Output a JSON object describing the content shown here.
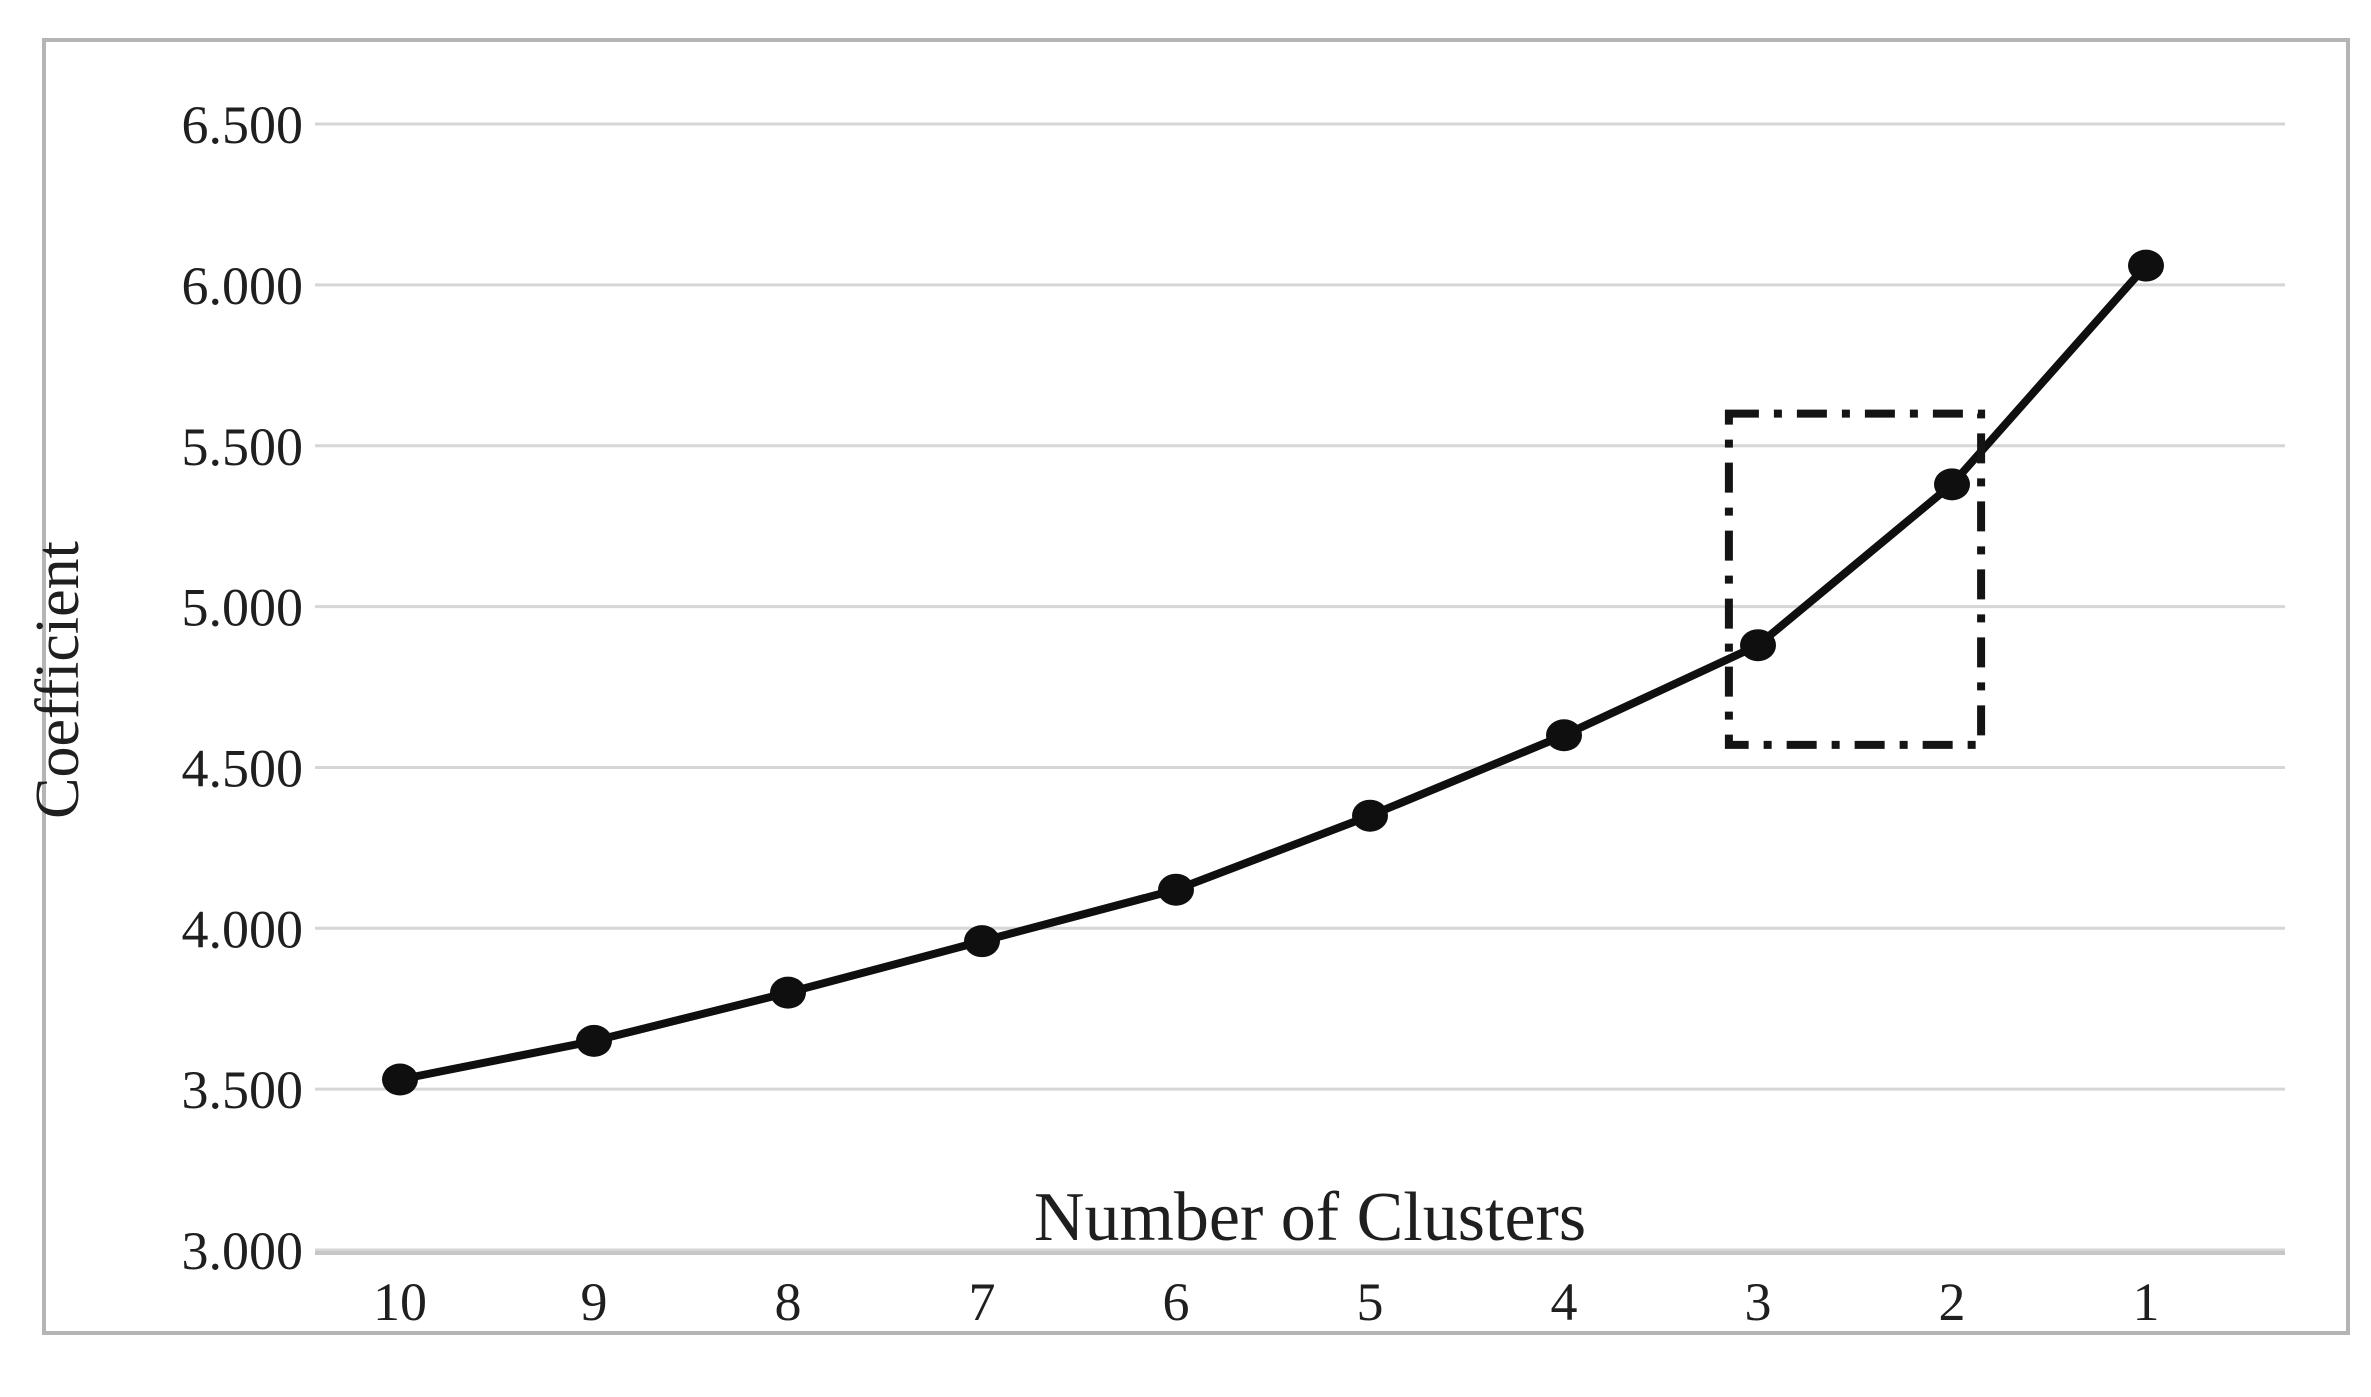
{
  "chart_data": {
    "type": "line",
    "title": "",
    "xlabel": "Number of Clusters",
    "ylabel": "Coefficient",
    "categories": [
      10,
      9,
      8,
      7,
      6,
      5,
      4,
      3,
      2,
      1
    ],
    "series": [
      {
        "name": "Coefficient",
        "values": [
          3.53,
          3.65,
          3.8,
          3.96,
          4.12,
          4.35,
          4.6,
          4.88,
          5.38,
          6.06
        ],
        "marker": "filled-circle"
      }
    ],
    "y_ticks": [
      {
        "label": "6.500",
        "value": 6.5
      },
      {
        "label": "6.000",
        "value": 6.0
      },
      {
        "label": "5.500",
        "value": 5.5
      },
      {
        "label": "5.000",
        "value": 5.0
      },
      {
        "label": "4.500",
        "value": 4.5
      },
      {
        "label": "4.000",
        "value": 4.0
      },
      {
        "label": "3.500",
        "value": 3.5
      },
      {
        "label": "3.000",
        "value": 3.0
      }
    ],
    "ylim": [
      3.0,
      6.5
    ],
    "grid": {
      "horizontal": true,
      "vertical": false
    },
    "legend": "none",
    "annotation_box": {
      "shape": "rectangle",
      "style": "dash-dot",
      "x_from_cluster": 3.15,
      "x_to_cluster": 1.85,
      "y_from": 4.57,
      "y_to": 5.6
    },
    "colors": {
      "line": "#0f0f0f",
      "marker": "#0f0f0f",
      "grid": "#d6d6d6",
      "axis_line": "#c6c6c6",
      "frame": "#b5b5b5",
      "text": "#1f1f1f",
      "background": "#ffffff",
      "annotation": "#141414"
    }
  }
}
